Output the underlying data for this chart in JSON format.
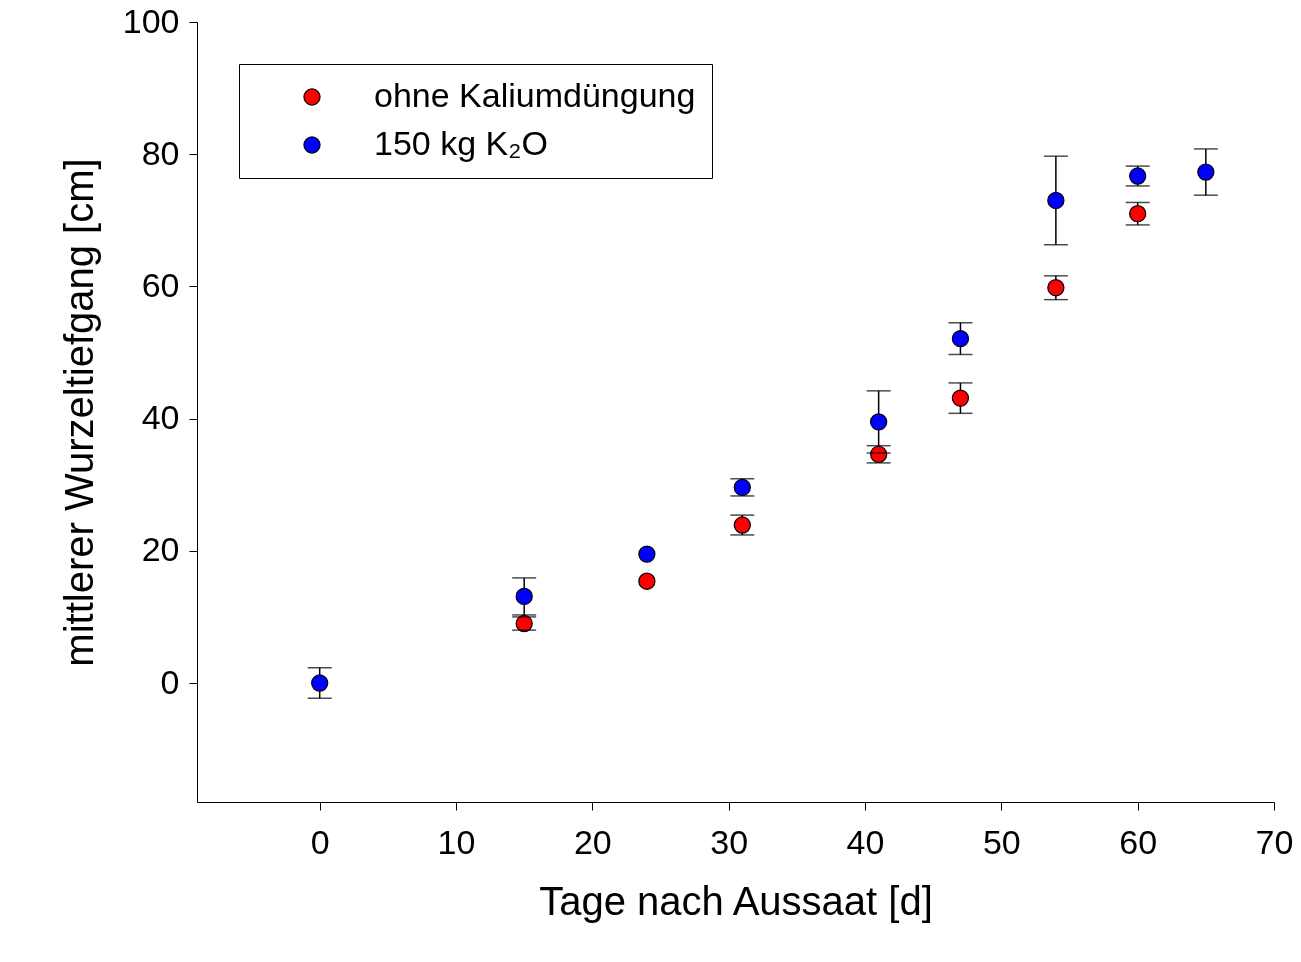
{
  "chart_data": {
    "type": "scatter",
    "xlabel": "Tage nach Aussaat [d]",
    "ylabel": "mittlerer Wurzeltiefgang [cm]",
    "x": [
      0,
      15,
      24,
      31,
      41,
      47,
      54,
      60,
      65
    ],
    "series": [
      {
        "name": "ohne Kaliumdüngung",
        "color": "#ff0000",
        "values": [
          null,
          9.0,
          15.4,
          23.9,
          34.6,
          43.1,
          59.8,
          71.0,
          null
        ],
        "errors": [
          null,
          1.0,
          null,
          1.5,
          1.3,
          2.3,
          1.8,
          1.7,
          null
        ]
      },
      {
        "name": "150 kg K₂O",
        "color": "#0000ff",
        "values": [
          0,
          13.1,
          19.5,
          29.6,
          39.5,
          52.1,
          73.0,
          76.7,
          77.3
        ],
        "errors": [
          2.3,
          2.8,
          null,
          1.3,
          4.7,
          2.4,
          6.7,
          1.5,
          3.5
        ]
      }
    ],
    "xlim": [
      -9,
      70
    ],
    "ylim": [
      -18,
      100
    ],
    "xticks": [
      0,
      10,
      20,
      30,
      40,
      50,
      60,
      70
    ],
    "yticks": [
      0,
      20,
      40,
      60,
      80,
      100
    ],
    "marker": "circle",
    "legend": "top left",
    "grid": false
  }
}
